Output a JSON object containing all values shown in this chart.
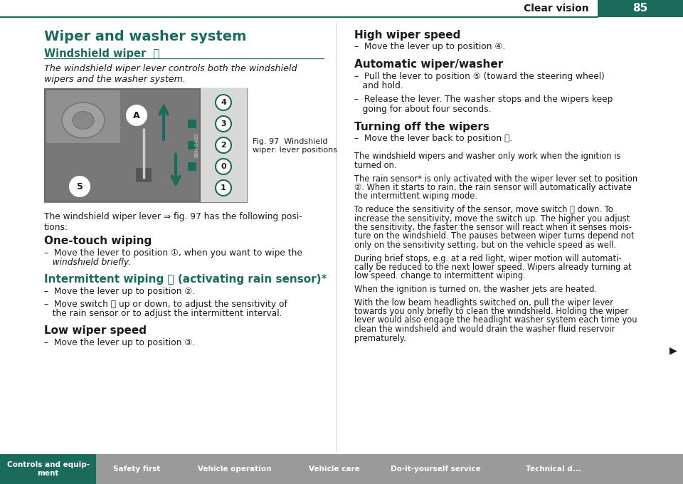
{
  "page_bg": "#ffffff",
  "header_text": "Clear vision",
  "header_page_num": "85",
  "header_bg": "#1a6b5a",
  "teal_color": "#1a6b5a",
  "title": "Wiper and washer system",
  "subtitle": "Windshield wiper",
  "italic_text": "The windshield wiper lever controls both the windshield\nwipers and the washer system.",
  "fig_caption": "Fig. 97  Windshield\nwiper: lever positions",
  "lever_text": "The windshield wiper lever ⇒ fig. 97 has the following posi-\ntions:",
  "section1_title": "One-touch wiping",
  "section1_b1": "–  Move the lever to position ①, when you want to wipe the",
  "section1_b2": "   windshield briefly.",
  "section2_title": "Intermittent wiping ⒡ (activating rain sensor)*",
  "section2_b1": "–  Move the lever up to position ②.",
  "section2_b2": "–  Move switch Ⓐ up or down, to adjust the sensitivity of",
  "section2_b3": "   the rain sensor or to adjust the intermittent interval.",
  "section3_title": "Low wiper speed",
  "section3_b1": "–  Move the lever up to position ③.",
  "rs1_title": "High wiper speed",
  "rs1_b1": "–  Move the lever up to position ④.",
  "rs2_title": "Automatic wiper/washer",
  "rs2_b1": "–  Pull the lever to position ⑤ (toward the steering wheel)",
  "rs2_b2": "   and hold.",
  "rs2_b3": "–  Release the lever. The washer stops and the wipers keep",
  "rs2_b4": "   going for about four seconds.",
  "rs3_title": "Turning off the wipers",
  "rs3_b1": "–  Move the lever back to position Ⓙ.",
  "rp1": "The windshield wipers and washer only work when the ignition is\nturned on.",
  "rp2l1": "The rain sensor* is only activated with the wiper lever set to position",
  "rp2l2": "②. When it starts to rain, the rain sensor will automatically activate",
  "rp2l3": "the intermittent wiping mode.",
  "rp3l1": "To reduce the sensitivity of the sensor, move switch Ⓐ down. To",
  "rp3l2": "increase the sensitivity, move the switch up. The higher you adjust",
  "rp3l3": "the sensitivity, the faster the sensor will react when it senses mois-",
  "rp3l4": "ture on the windshield. The pauses between wiper turns depend not",
  "rp3l5": "only on the sensitivity setting, but on the vehicle speed as well.",
  "rp4l1": "During brief stops, e.g. at a red light, wiper motion will automati-",
  "rp4l2": "cally be reduced to the next lower speed. Wipers already turning at",
  "rp4l3": "low speed. change to intermittent wiping.",
  "rp5": "When the ignition is turned on, the washer jets are heated.",
  "rp6l1": "With the low beam headlights switched on, pull the wiper lever",
  "rp6l2": "towards you only briefly to clean the windshield. Holding the wiper",
  "rp6l3": "lever would also engage the headlight washer system each time you",
  "rp6l4": "clean the windshield and would drain the washer fluid reservoir",
  "rp6l5": "prematurely.",
  "arrow_symbol": "▶",
  "footer_tabs": [
    "Controls and equip-\nment",
    "Safety first",
    "Vehicle operation",
    "Vehicle care",
    "Do-it-yourself service",
    "Technical d..."
  ],
  "footer_bg": "#9a9a9a",
  "footer_active_bg": "#1a6b5a",
  "footer_text_color": "#ffffff",
  "divider_color": "#1a6b5a"
}
